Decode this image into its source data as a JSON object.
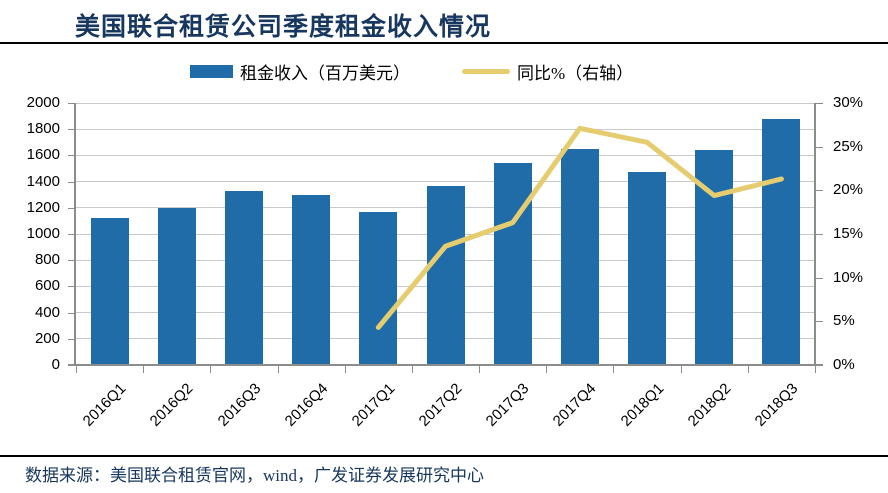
{
  "header": {
    "title": "美国联合租赁公司季度租金收入情况"
  },
  "legend": [
    {
      "label": "租金收入（百万美元）",
      "swatch": "bar-swatch"
    },
    {
      "label": "同比%（右轴）",
      "swatch": "line-swatch"
    }
  ],
  "footer": {
    "source": "数据来源：美国联合租赁官网，wind，广发证券发展研究中心"
  },
  "colors": {
    "bar": "#1F6CA9",
    "line": "#E5CC6E",
    "grid": "#C9C9C9",
    "axis": "#8C8C8C",
    "title_text": "#17375E",
    "divider": "#000000"
  },
  "chart_data": {
    "type": "bar",
    "title": "美国联合租赁公司季度租金收入情况",
    "categories": [
      "2016Q1",
      "2016Q2",
      "2016Q3",
      "2016Q4",
      "2017Q1",
      "2017Q2",
      "2017Q3",
      "2017Q4",
      "2018Q1",
      "2018Q2",
      "2018Q3"
    ],
    "series": [
      {
        "name": "租金收入（百万美元）",
        "type": "bar",
        "axis": "left",
        "values": [
          1120,
          1200,
          1325,
          1300,
          1165,
          1370,
          1545,
          1650,
          1470,
          1640,
          1880
        ]
      },
      {
        "name": "同比%（右轴）",
        "type": "line",
        "axis": "right",
        "start_category_index": 4,
        "values": [
          4.3,
          13.6,
          16.3,
          27.1,
          25.5,
          19.4,
          21.3
        ]
      }
    ],
    "left_axis": {
      "min": 0,
      "max": 2000,
      "step": 200,
      "ticks": [
        "0",
        "200",
        "400",
        "600",
        "800",
        "1000",
        "1200",
        "1400",
        "1600",
        "1800",
        "2000"
      ]
    },
    "right_axis": {
      "min": 0,
      "max": 30,
      "step": 5,
      "ticks": [
        "0%",
        "5%",
        "10%",
        "15%",
        "20%",
        "25%",
        "30%"
      ]
    },
    "grid": true,
    "legend_position": "top",
    "xlabel_rotation_deg": -45
  }
}
